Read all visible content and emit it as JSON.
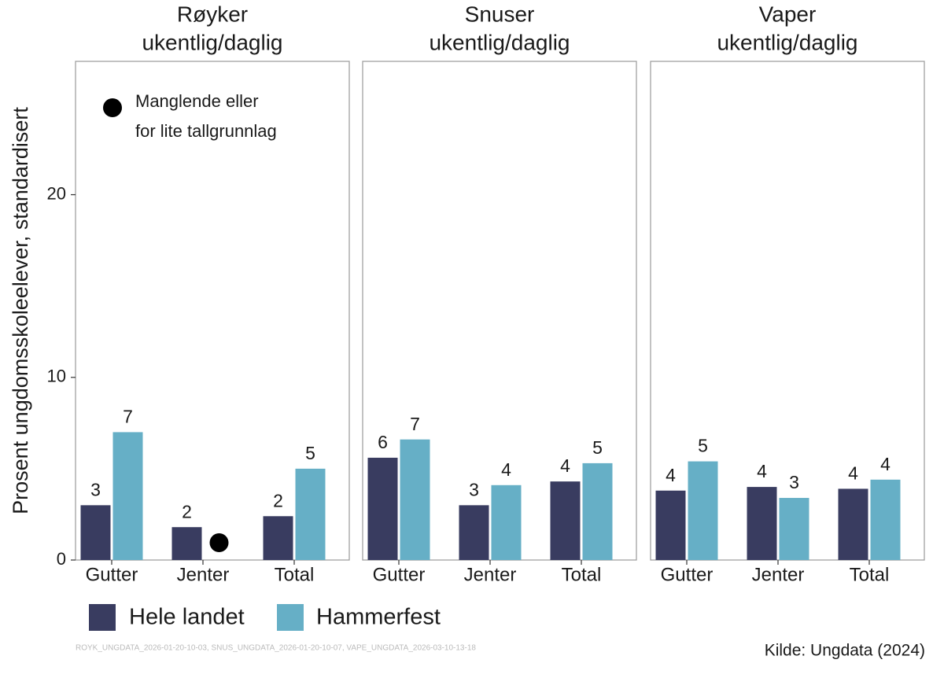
{
  "chart_data": [
    {
      "type": "bar",
      "title": [
        "Røyker",
        "ukentlig/daglig"
      ],
      "ylabel": "Prosent ungdomsskoleelever, standardisert",
      "annotation": [
        "Manglende eller",
        "for lite tallgrunnlag"
      ],
      "categories": [
        "Gutter",
        "Jenter",
        "Total"
      ],
      "series": [
        {
          "name": "Hele landet",
          "color": "#393c60",
          "values": [
            3.0,
            1.8,
            2.4
          ],
          "value_labels": [
            "3",
            "2",
            "2"
          ]
        },
        {
          "name": "Hammerfest",
          "color": "#66afc6",
          "values": [
            7.0,
            null,
            5.0
          ],
          "value_labels": [
            "7",
            null,
            "5"
          ]
        }
      ],
      "ylim": [
        0,
        27.3
      ],
      "yticks": [
        0,
        10,
        20
      ]
    },
    {
      "type": "bar",
      "title": [
        "Snuser",
        "ukentlig/daglig"
      ],
      "categories": [
        "Gutter",
        "Jenter",
        "Total"
      ],
      "series": [
        {
          "name": "Hele landet",
          "color": "#393c60",
          "values": [
            5.6,
            3.0,
            4.3
          ],
          "value_labels": [
            "6",
            "3",
            "4"
          ]
        },
        {
          "name": "Hammerfest",
          "color": "#66afc6",
          "values": [
            6.6,
            4.1,
            5.3
          ],
          "value_labels": [
            "7",
            "4",
            "5"
          ]
        }
      ],
      "ylim": [
        0,
        27.3
      ]
    },
    {
      "type": "bar",
      "title": [
        "Vaper",
        "ukentlig/daglig"
      ],
      "categories": [
        "Gutter",
        "Jenter",
        "Total"
      ],
      "series": [
        {
          "name": "Hele landet",
          "color": "#393c60",
          "values": [
            3.8,
            4.0,
            3.9
          ],
          "value_labels": [
            "4",
            "4",
            "4"
          ]
        },
        {
          "name": "Hammerfest",
          "color": "#66afc6",
          "values": [
            5.4,
            3.4,
            4.4
          ],
          "value_labels": [
            "5",
            "3",
            "4"
          ]
        }
      ],
      "ylim": [
        0,
        27.3
      ]
    }
  ],
  "source": "Kilde: Ungdata (2024)",
  "footnote": "ROYK_UNGDATA_2026-01-20-10-03, SNUS_UNGDATA_2026-01-20-10-07, VAPE_UNGDATA_2026-03-10-13-18"
}
